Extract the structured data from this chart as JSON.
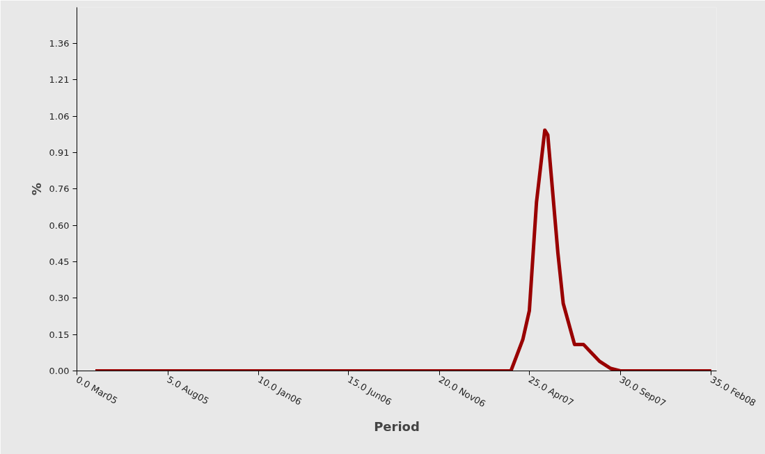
{
  "chart_data": {
    "type": "line",
    "xlabel": "Period",
    "ylabel": "%",
    "x": [
      "2005-04-01",
      "2005-05-01",
      "2005-06-01",
      "2005-07-01",
      "2005-08-01",
      "2005-09-01",
      "2005-10-01",
      "2005-11-01",
      "2005-12-01",
      "2006-01-01",
      "2006-02-01",
      "2006-03-01",
      "2006-04-01",
      "2006-05-01",
      "2006-06-01",
      "2006-07-01",
      "2006-08-01",
      "2006-09-01",
      "2006-10-01",
      "2006-11-01",
      "2006-12-01",
      "2007-01-01",
      "2007-02-01",
      "2007-03-01",
      "2007-03-21",
      "2007-04-01",
      "2007-04-13",
      "2007-04-27",
      "2007-05-02",
      "2007-05-19",
      "2007-05-28",
      "2007-06-16",
      "2007-07-01",
      "2007-07-28",
      "2007-08-16",
      "2007-09-01",
      "2007-10-01",
      "2007-11-01",
      "2007-12-01",
      "2008-01-01",
      "2008-02-01"
    ],
    "series": [
      {
        "color": "#990000",
        "values": [
          0,
          0,
          0,
          0,
          0,
          0,
          0,
          0,
          0,
          0,
          0,
          0,
          0,
          0,
          0,
          0,
          0,
          0,
          0,
          0,
          0,
          0,
          0,
          0,
          0.13,
          0.25,
          0.7,
          1.0,
          0.98,
          0.49,
          0.28,
          0.11,
          0.11,
          0.04,
          0.01,
          0,
          0,
          0,
          0,
          0,
          0
        ]
      }
    ],
    "xlim": [
      "2005-03-01",
      "2008-02-10"
    ],
    "ylim": [
      0,
      1.51
    ],
    "xticks": [
      {
        "value": "2005-03-01",
        "label": "0.0 Mar05"
      },
      {
        "value": "2005-08-01",
        "label": "5.0 Aug05"
      },
      {
        "value": "2006-01-01",
        "label": "10.0 Jan06"
      },
      {
        "value": "2006-06-01",
        "label": "15.0 Jun06"
      },
      {
        "value": "2006-11-01",
        "label": "20.0 Nov06"
      },
      {
        "value": "2007-04-01",
        "label": "25.0 Apr07"
      },
      {
        "value": "2007-09-01",
        "label": "30.0 Sep07"
      },
      {
        "value": "2008-02-01",
        "label": "35.0 Feb08"
      }
    ],
    "yticks": [
      {
        "value": 0,
        "label": "0.00"
      },
      {
        "value": 0.1511,
        "label": "0.15"
      },
      {
        "value": 0.3022,
        "label": "0.30"
      },
      {
        "value": 0.4533,
        "label": "0.45"
      },
      {
        "value": 0.6044,
        "label": "0.60"
      },
      {
        "value": 0.7556,
        "label": "0.76"
      },
      {
        "value": 0.9067,
        "label": "0.91"
      },
      {
        "value": 1.0578,
        "label": "1.06"
      },
      {
        "value": 1.2089,
        "label": "1.21"
      },
      {
        "value": 1.36,
        "label": "1.36"
      }
    ],
    "line_style": "solid"
  }
}
